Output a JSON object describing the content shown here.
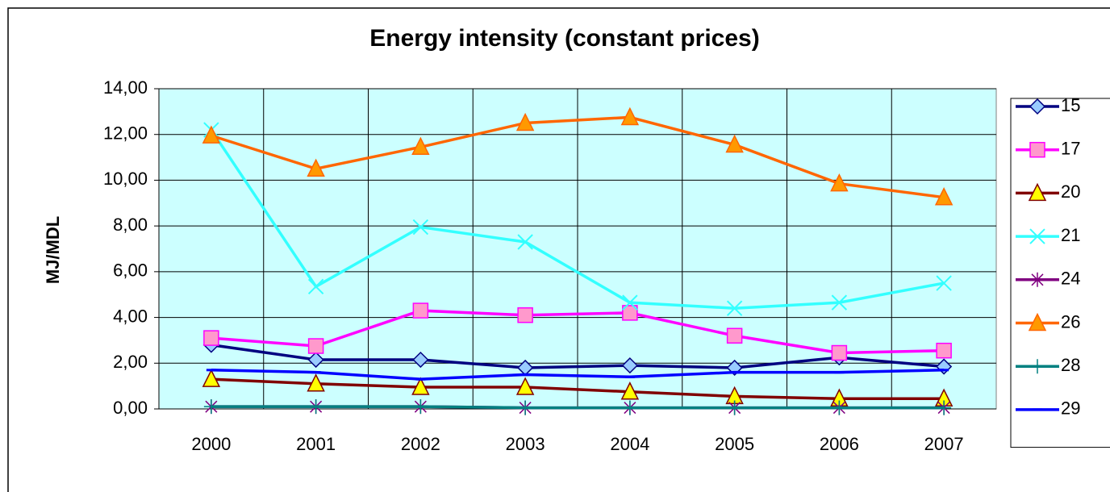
{
  "chart_data": {
    "type": "line",
    "title": "Energy intensity (constant prices)",
    "y_label": "MJ/MDL",
    "categories": [
      "2000",
      "2001",
      "2002",
      "2003",
      "2004",
      "2005",
      "2006",
      "2007"
    ],
    "ylim": [
      0,
      14
    ],
    "yticks": [
      {
        "value": 0,
        "label": "0,00"
      },
      {
        "value": 2,
        "label": "2,00"
      },
      {
        "value": 4,
        "label": "4,00"
      },
      {
        "value": 6,
        "label": "6,00"
      },
      {
        "value": 8,
        "label": "8,00"
      },
      {
        "value": 10,
        "label": "10,00"
      },
      {
        "value": 12,
        "label": "12,00"
      },
      {
        "value": 14,
        "label": "14,00"
      }
    ],
    "grid": true,
    "legend": "right",
    "series": [
      {
        "name": "15",
        "color": "#000080",
        "marker": "diamond",
        "marker_fill": "#99ccff",
        "marker_edge": "#000080",
        "values": [
          2.8,
          2.15,
          2.15,
          1.8,
          1.9,
          1.8,
          2.25,
          1.85
        ]
      },
      {
        "name": "17",
        "color": "#ff00ff",
        "marker": "square",
        "marker_fill": "#ff99cc",
        "marker_edge": "#ff00ff",
        "values": [
          3.1,
          2.75,
          4.3,
          4.1,
          4.2,
          3.2,
          2.45,
          2.55
        ]
      },
      {
        "name": "20",
        "color": "#800000",
        "marker": "triangle",
        "marker_fill": "#ffff00",
        "marker_edge": "#800000",
        "values": [
          1.3,
          1.1,
          0.95,
          0.95,
          0.75,
          0.55,
          0.45,
          0.45
        ]
      },
      {
        "name": "21",
        "color": "#33ffff",
        "marker": "x",
        "marker_fill": "none",
        "marker_edge": "#33ffff",
        "values": [
          12.2,
          5.35,
          7.95,
          7.3,
          4.65,
          4.4,
          4.65,
          5.5
        ]
      },
      {
        "name": "24",
        "color": "#800080",
        "marker": "star",
        "marker_fill": "none",
        "marker_edge": "#800080",
        "values": [
          0.1,
          0.1,
          0.1,
          0.05,
          0.05,
          0.05,
          0.05,
          0.05
        ]
      },
      {
        "name": "26",
        "color": "#ff6600",
        "marker": "triangle",
        "marker_fill": "#ff9900",
        "marker_edge": "#ff6600",
        "values": [
          11.95,
          10.5,
          11.45,
          12.5,
          12.75,
          11.55,
          9.85,
          9.25
        ]
      },
      {
        "name": "28",
        "color": "#008080",
        "marker": "plus",
        "marker_fill": "none",
        "marker_edge": "#008080",
        "values": [
          0.1,
          0.1,
          0.1,
          0.05,
          0.05,
          0.05,
          0.05,
          0.05
        ]
      },
      {
        "name": "29",
        "color": "#0000ff",
        "marker": "dash",
        "marker_fill": "none",
        "marker_edge": "#0000ff",
        "values": [
          1.7,
          1.6,
          1.3,
          1.5,
          1.4,
          1.6,
          1.6,
          1.7
        ]
      }
    ]
  }
}
